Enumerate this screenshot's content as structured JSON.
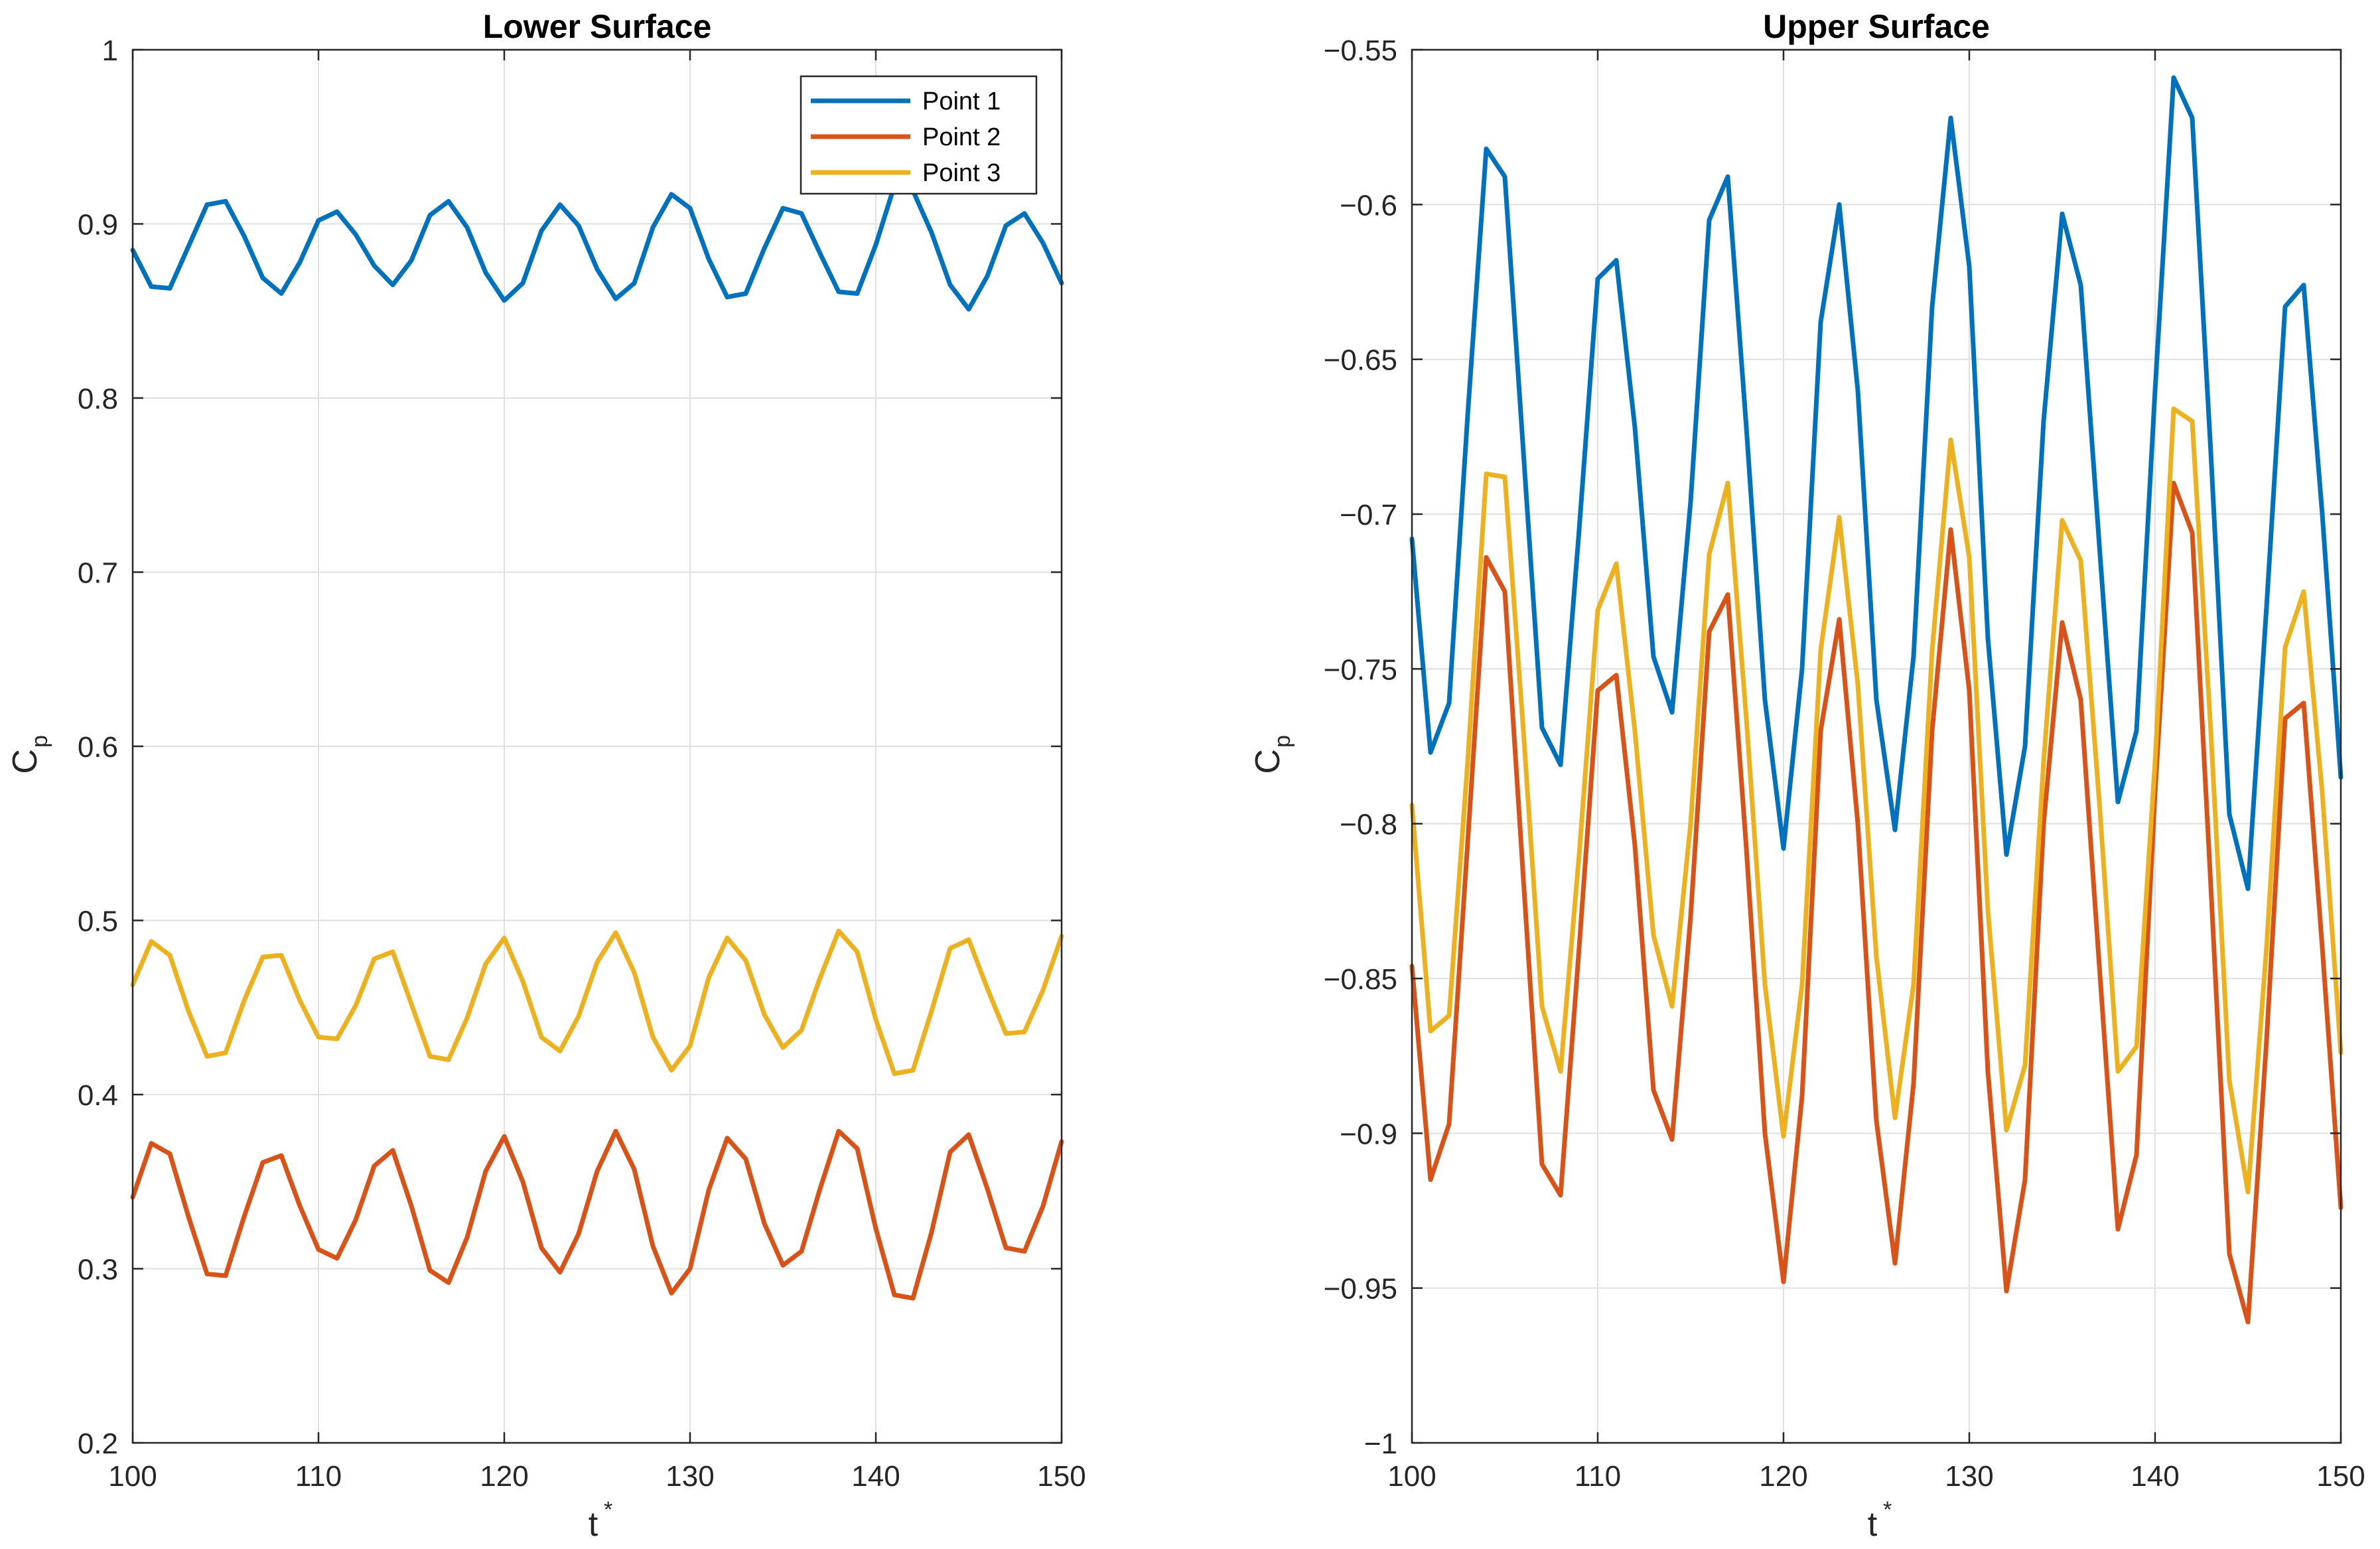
{
  "chart_data": [
    {
      "type": "line",
      "title": "Lower Surface",
      "xlabel": "t",
      "xlabel_superscript": "*",
      "ylabel": "C",
      "ylabel_subscript": "p",
      "xlim": [
        100,
        150
      ],
      "ylim": [
        0.2,
        1.0
      ],
      "xticks": [
        100,
        110,
        120,
        130,
        140,
        150
      ],
      "yticks": [
        0.2,
        0.3,
        0.4,
        0.5,
        0.6,
        0.7,
        0.8,
        0.9,
        1.0
      ],
      "ytick_labels": [
        "0.2",
        "0.3",
        "0.4",
        "0.5",
        "0.6",
        "0.7",
        "0.8",
        "0.9",
        "1"
      ],
      "grid": true,
      "legend": "top-right",
      "x": [
        100,
        101,
        102,
        103,
        104,
        105,
        106,
        107,
        108,
        109,
        110,
        111,
        112,
        113,
        114,
        115,
        116,
        117,
        118,
        119,
        120,
        121,
        122,
        123,
        124,
        125,
        126,
        127,
        128,
        129,
        130,
        131,
        132,
        133,
        134,
        135,
        136,
        137,
        138,
        139,
        140,
        141,
        142,
        143,
        144,
        145,
        146,
        147,
        148,
        149,
        150
      ],
      "series": [
        {
          "name": "Point 1",
          "color": "#0072BD",
          "values": [
            0.885,
            0.864,
            0.863,
            0.887,
            0.911,
            0.913,
            0.893,
            0.869,
            0.86,
            0.878,
            0.902,
            0.907,
            0.894,
            0.876,
            0.865,
            0.879,
            0.905,
            0.913,
            0.898,
            0.872,
            0.856,
            0.866,
            0.896,
            0.911,
            0.899,
            0.874,
            0.857,
            0.866,
            0.898,
            0.917,
            0.909,
            0.88,
            0.858,
            0.86,
            0.886,
            0.909,
            0.906,
            0.883,
            0.861,
            0.86,
            0.888,
            0.922,
            0.919,
            0.895,
            0.865,
            0.851,
            0.87,
            0.899,
            0.906,
            0.889,
            0.866
          ]
        },
        {
          "name": "Point 2",
          "color": "#D95319",
          "values": [
            0.341,
            0.372,
            0.366,
            0.33,
            0.297,
            0.296,
            0.33,
            0.361,
            0.365,
            0.336,
            0.311,
            0.306,
            0.328,
            0.359,
            0.368,
            0.336,
            0.299,
            0.292,
            0.318,
            0.356,
            0.376,
            0.35,
            0.312,
            0.298,
            0.32,
            0.356,
            0.379,
            0.357,
            0.313,
            0.286,
            0.3,
            0.345,
            0.375,
            0.363,
            0.326,
            0.302,
            0.31,
            0.346,
            0.379,
            0.369,
            0.323,
            0.285,
            0.283,
            0.321,
            0.367,
            0.377,
            0.346,
            0.312,
            0.31,
            0.336,
            0.373
          ]
        },
        {
          "name": "Point 3",
          "color": "#EDB120",
          "values": [
            0.463,
            0.488,
            0.48,
            0.448,
            0.422,
            0.424,
            0.454,
            0.479,
            0.48,
            0.454,
            0.433,
            0.432,
            0.451,
            0.478,
            0.482,
            0.452,
            0.422,
            0.42,
            0.444,
            0.475,
            0.49,
            0.465,
            0.433,
            0.425,
            0.445,
            0.476,
            0.493,
            0.47,
            0.433,
            0.414,
            0.428,
            0.467,
            0.49,
            0.477,
            0.446,
            0.427,
            0.437,
            0.467,
            0.494,
            0.482,
            0.443,
            0.412,
            0.414,
            0.448,
            0.484,
            0.489,
            0.461,
            0.435,
            0.436,
            0.46,
            0.491
          ]
        }
      ]
    },
    {
      "type": "line",
      "title": "Upper Surface",
      "xlabel": "t",
      "xlabel_superscript": "*",
      "ylabel": "C",
      "ylabel_subscript": "p",
      "xlim": [
        100,
        150
      ],
      "ylim": [
        -1.0,
        -0.55
      ],
      "xticks": [
        100,
        110,
        120,
        130,
        140,
        150
      ],
      "yticks": [
        -1.0,
        -0.95,
        -0.9,
        -0.85,
        -0.8,
        -0.75,
        -0.7,
        -0.65,
        -0.6,
        -0.55
      ],
      "ytick_labels": [
        "−1",
        "−0.95",
        "−0.9",
        "−0.85",
        "−0.8",
        "−0.75",
        "−0.7",
        "−0.65",
        "−0.6",
        "−0.55"
      ],
      "grid": true,
      "x": [
        100,
        101,
        102,
        103,
        104,
        105,
        106,
        107,
        108,
        109,
        110,
        111,
        112,
        113,
        114,
        115,
        116,
        117,
        118,
        119,
        120,
        121,
        122,
        123,
        124,
        125,
        126,
        127,
        128,
        129,
        130,
        131,
        132,
        133,
        134,
        135,
        136,
        137,
        138,
        139,
        140,
        141,
        142,
        143,
        144,
        145,
        146,
        147,
        148,
        149,
        150
      ],
      "series": [
        {
          "name": "Point 1",
          "color": "#0072BD",
          "values": [
            -0.708,
            -0.777,
            -0.761,
            -0.668,
            -0.582,
            -0.591,
            -0.68,
            -0.769,
            -0.781,
            -0.705,
            -0.624,
            -0.618,
            -0.672,
            -0.746,
            -0.764,
            -0.696,
            -0.605,
            -0.591,
            -0.672,
            -0.76,
            -0.808,
            -0.75,
            -0.638,
            -0.6,
            -0.66,
            -0.76,
            -0.802,
            -0.746,
            -0.633,
            -0.572,
            -0.62,
            -0.74,
            -0.81,
            -0.775,
            -0.67,
            -0.603,
            -0.626,
            -0.71,
            -0.793,
            -0.77,
            -0.66,
            -0.559,
            -0.572,
            -0.68,
            -0.797,
            -0.821,
            -0.73,
            -0.633,
            -0.626,
            -0.7,
            -0.785
          ]
        },
        {
          "name": "Point 2",
          "color": "#D95319",
          "values": [
            -0.846,
            -0.915,
            -0.897,
            -0.806,
            -0.714,
            -0.725,
            -0.818,
            -0.91,
            -0.92,
            -0.84,
            -0.757,
            -0.752,
            -0.807,
            -0.886,
            -0.902,
            -0.83,
            -0.738,
            -0.726,
            -0.808,
            -0.9,
            -0.948,
            -0.888,
            -0.77,
            -0.734,
            -0.8,
            -0.896,
            -0.942,
            -0.884,
            -0.77,
            -0.705,
            -0.757,
            -0.88,
            -0.951,
            -0.915,
            -0.8,
            -0.735,
            -0.76,
            -0.846,
            -0.931,
            -0.907,
            -0.79,
            -0.69,
            -0.706,
            -0.82,
            -0.939,
            -0.961,
            -0.87,
            -0.766,
            -0.761,
            -0.84,
            -0.924
          ]
        },
        {
          "name": "Point 3",
          "color": "#EDB120",
          "values": [
            -0.794,
            -0.867,
            -0.862,
            -0.78,
            -0.687,
            -0.688,
            -0.77,
            -0.859,
            -0.88,
            -0.81,
            -0.731,
            -0.716,
            -0.77,
            -0.836,
            -0.859,
            -0.8,
            -0.713,
            -0.69,
            -0.766,
            -0.852,
            -0.901,
            -0.852,
            -0.744,
            -0.701,
            -0.755,
            -0.843,
            -0.895,
            -0.852,
            -0.744,
            -0.676,
            -0.714,
            -0.828,
            -0.899,
            -0.878,
            -0.78,
            -0.702,
            -0.715,
            -0.793,
            -0.88,
            -0.872,
            -0.78,
            -0.666,
            -0.67,
            -0.77,
            -0.883,
            -0.919,
            -0.84,
            -0.743,
            -0.725,
            -0.79,
            -0.874
          ]
        }
      ]
    }
  ]
}
